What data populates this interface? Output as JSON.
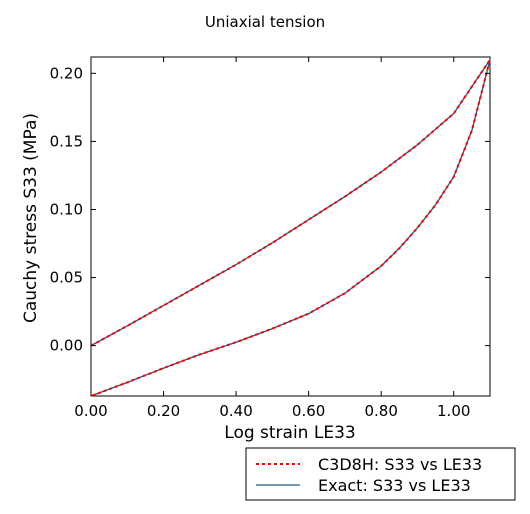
{
  "chart_data": {
    "type": "line",
    "title": "Uniaxial tension",
    "xlabel": "Log strain LE33",
    "ylabel": "Cauchy stress S33 (MPa)",
    "xlim": [
      0.0,
      1.1
    ],
    "ylim": [
      -0.037,
      0.212
    ],
    "xticks": [
      "0.00",
      "0.20",
      "0.40",
      "0.60",
      "0.80",
      "1.00"
    ],
    "xtick_values": [
      0.0,
      0.2,
      0.4,
      0.6,
      0.8,
      1.0
    ],
    "yticks": [
      "0.00",
      "0.05",
      "0.10",
      "0.15",
      "0.20"
    ],
    "ytick_values": [
      0.0,
      0.05,
      0.1,
      0.15,
      0.2
    ],
    "grid": false,
    "legend_position": "bottom-right, below plot",
    "series": [
      {
        "name": "C3D8H: S33 vs LE33",
        "color": "#ff0000",
        "style": "dashed",
        "x": [
          0.0,
          0.1,
          0.2,
          0.3,
          0.4,
          0.5,
          0.6,
          0.7,
          0.8,
          0.9,
          1.0,
          1.1,
          1.1,
          1.05,
          1.0,
          0.95,
          0.9,
          0.85,
          0.8,
          0.7,
          0.6,
          0.5,
          0.4,
          0.3,
          0.2,
          0.1,
          0.0
        ],
        "y": [
          0.0,
          0.0145,
          0.0295,
          0.0445,
          0.0595,
          0.0755,
          0.0925,
          0.1095,
          0.1275,
          0.1475,
          0.1705,
          0.21,
          0.21,
          0.158,
          0.124,
          0.1035,
          0.0865,
          0.0715,
          0.0585,
          0.0385,
          0.0235,
          0.0125,
          0.0025,
          -0.0065,
          -0.0165,
          -0.027,
          -0.037
        ]
      },
      {
        "name": "Exact: S33 vs LE33",
        "color": "#1f5a80",
        "style": "solid",
        "x": [
          0.0,
          0.1,
          0.2,
          0.3,
          0.4,
          0.5,
          0.6,
          0.7,
          0.8,
          0.9,
          1.0,
          1.1,
          1.1,
          1.05,
          1.0,
          0.95,
          0.9,
          0.85,
          0.8,
          0.7,
          0.6,
          0.5,
          0.4,
          0.3,
          0.2,
          0.1,
          0.0
        ],
        "y": [
          0.0,
          0.0145,
          0.0295,
          0.0445,
          0.0595,
          0.0755,
          0.0925,
          0.1095,
          0.1275,
          0.1475,
          0.1705,
          0.21,
          0.21,
          0.158,
          0.124,
          0.1035,
          0.0865,
          0.0715,
          0.0585,
          0.0385,
          0.0235,
          0.0125,
          0.0025,
          -0.0065,
          -0.0165,
          -0.027,
          -0.037
        ]
      }
    ]
  }
}
